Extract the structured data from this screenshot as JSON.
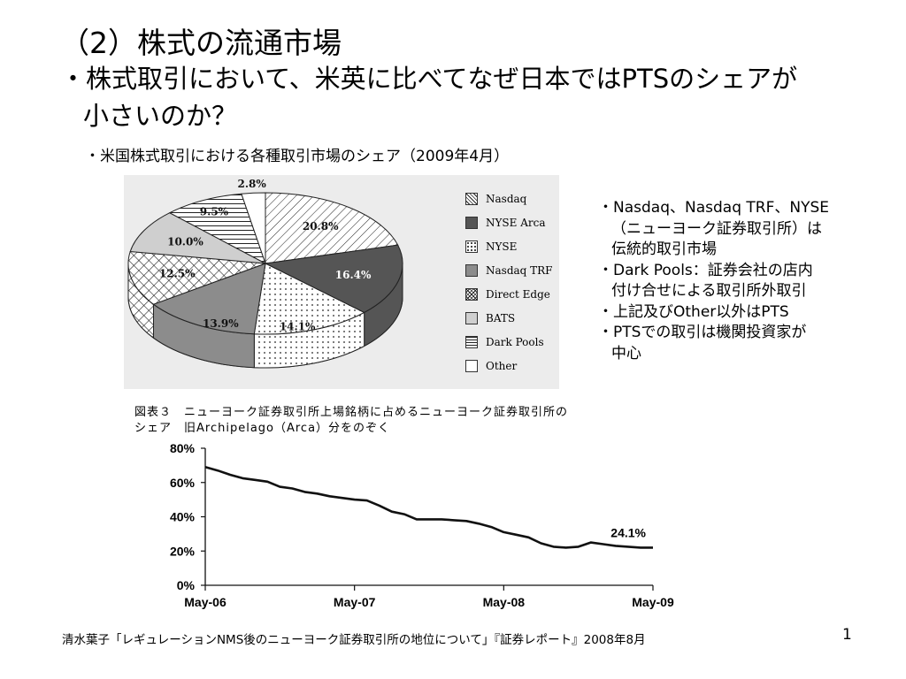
{
  "slide": {
    "title": "（2）株式の流通市場",
    "question_line1": "・株式取引において、米英に比べてなぜ日本ではPTSのシェアが",
    "question_line2": "小さいのか？",
    "subheading": "・米国株式取引における各種取引市場のシェア（2009年4月）",
    "notes": [
      "・Nasdaq、Nasdaq TRF、NYSE",
      "（ニューヨーク証券取引所）は",
      "伝統的取引市場",
      "・Dark Pools：証券会社の店内",
      "付け合せによる取引所外取引",
      "・上記及びOther以外はPTS",
      "・PTSでの取引は機関投資家が",
      "中心"
    ],
    "footer": "清水葉子「レギュレーションNMS後のニューヨーク証券取引所の地位について」『証券レポート』2008年8月",
    "page_number": "1"
  },
  "chart_data": [
    {
      "type": "pie",
      "slices": [
        {
          "name": "Nasdaq",
          "value": 20.8,
          "label": "20.8%",
          "pattern": "diagonal-hatch",
          "color": "#ffffff"
        },
        {
          "name": "NYSE Arca",
          "value": 16.4,
          "label": "16.4%",
          "pattern": "solid",
          "color": "#555555"
        },
        {
          "name": "NYSE",
          "value": 14.1,
          "label": "14.1%",
          "pattern": "dots",
          "color": "#ffffff"
        },
        {
          "name": "Nasdaq TRF",
          "value": 13.9,
          "label": "13.9%",
          "pattern": "solid",
          "color": "#8c8c8c"
        },
        {
          "name": "Direct Edge",
          "value": 12.5,
          "label": "12.5%",
          "pattern": "crosshatch",
          "color": "#ffffff"
        },
        {
          "name": "BATS",
          "value": 10.0,
          "label": "10.0%",
          "pattern": "solid",
          "color": "#cfcfcf"
        },
        {
          "name": "Dark Pools",
          "value": 9.5,
          "label": "9.5%",
          "pattern": "horizontal-lines",
          "color": "#ffffff"
        },
        {
          "name": "Other",
          "value": 2.8,
          "label": "2.8%",
          "pattern": "solid",
          "color": "#ffffff"
        }
      ],
      "legend_position": "right"
    },
    {
      "type": "line",
      "title_line1": "図表３　ニューヨーク証券取引所上場銘柄に占めるニューヨーク証券取引所の",
      "title_line2": "シェア　旧Archipelago（Arca）分をのぞく",
      "x_tick_labels": [
        "May-06",
        "May-07",
        "May-08",
        "May-09"
      ],
      "y_tick_labels": [
        "0%",
        "20%",
        "40%",
        "60%",
        "80%"
      ],
      "ylim": [
        0,
        80
      ],
      "xlim": [
        0,
        36
      ],
      "series": [
        {
          "x": [
            0,
            1,
            2,
            3,
            4,
            5,
            6,
            7,
            8,
            9,
            10,
            11,
            12,
            13,
            14,
            15,
            16,
            17,
            18,
            19,
            20,
            21,
            22,
            23,
            24,
            25,
            26,
            27,
            28,
            29,
            30,
            31,
            32,
            33,
            34,
            35,
            36
          ],
          "values": [
            69,
            67,
            64.5,
            62.5,
            61.5,
            60.5,
            57.5,
            56.5,
            54.5,
            53.5,
            52,
            51,
            50,
            49.5,
            46.5,
            43,
            41.5,
            38.5,
            38.5,
            38.5,
            38,
            37.5,
            36,
            34,
            31,
            29.5,
            28,
            24.5,
            22.5,
            22,
            22.5,
            25,
            24,
            23,
            22.5,
            22,
            22
          ]
        }
      ],
      "annotation": "24.1%",
      "grid": false
    }
  ],
  "colors": {
    "pie_side": "#6a6a6a",
    "pie_stroke": "#222222",
    "line": "#111111"
  }
}
